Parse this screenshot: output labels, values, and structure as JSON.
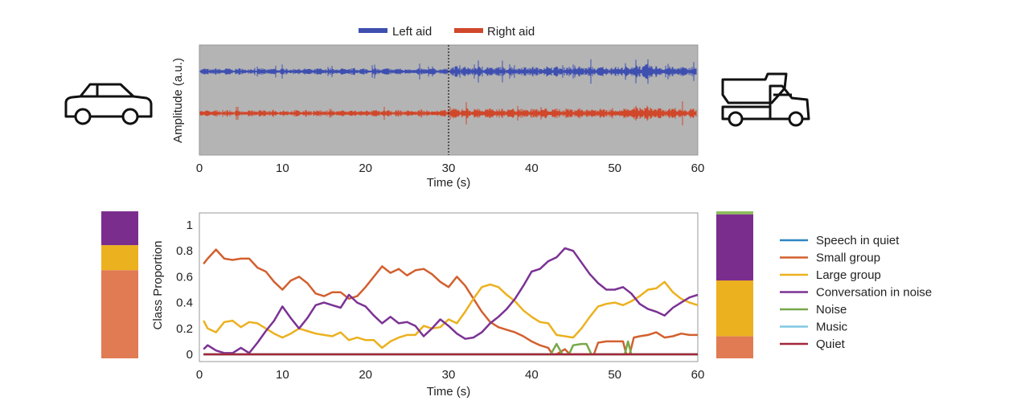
{
  "chart_data": [
    {
      "type": "line",
      "xlabel": "Time (s)",
      "ylabel": "Amplitude (a.u.)",
      "xlim": [
        0,
        60
      ],
      "xticks": [
        "0",
        "10",
        "20",
        "30",
        "40",
        "50",
        "60"
      ],
      "background": "#b4b4b4",
      "grid": false,
      "legend_position": "top",
      "marker_line_x": 30,
      "series": [
        {
          "name": "Left aid",
          "color": "#3e4fb0"
        },
        {
          "name": "Right aid",
          "color": "#d0472a"
        }
      ],
      "left_icon": "car-icon",
      "right_icon": "dump-truck-icon"
    },
    {
      "type": "line",
      "xlabel": "Time (s)",
      "ylabel": "Class Proportion",
      "xlim": [
        0,
        60
      ],
      "ylim": [
        0,
        1
      ],
      "xticks": [
        "0",
        "10",
        "20",
        "30",
        "40",
        "50",
        "60"
      ],
      "yticks": [
        "0",
        "0.2",
        "0.4",
        "0.6",
        "0.8",
        "1"
      ],
      "grid": false,
      "legend_position": "right",
      "series": [
        {
          "name": "Speech in quiet",
          "color": "#2e86c1",
          "x": [
            0.5,
            60
          ],
          "y": [
            0,
            0
          ]
        },
        {
          "name": "Small group",
          "color": "#d2602f",
          "x": [
            0.5,
            1,
            2,
            3,
            4,
            5,
            6,
            7,
            8,
            9,
            10,
            11,
            12,
            13,
            14,
            15,
            16,
            17,
            18,
            19,
            20,
            21,
            22,
            23,
            24,
            25,
            26,
            27,
            28,
            29,
            30,
            31,
            32,
            33,
            34,
            35,
            36,
            37,
            38,
            39,
            40,
            41,
            42,
            42.5,
            43,
            44,
            44.6,
            45,
            46,
            47,
            47.5,
            48,
            49,
            50,
            51,
            51.4,
            51.8,
            52.3,
            53,
            54,
            55,
            56,
            57,
            58,
            59,
            60
          ],
          "y": [
            0.7,
            0.74,
            0.81,
            0.74,
            0.73,
            0.74,
            0.74,
            0.67,
            0.64,
            0.56,
            0.5,
            0.57,
            0.6,
            0.55,
            0.47,
            0.45,
            0.48,
            0.48,
            0.43,
            0.45,
            0.52,
            0.6,
            0.68,
            0.63,
            0.66,
            0.61,
            0.65,
            0.66,
            0.62,
            0.56,
            0.52,
            0.6,
            0.53,
            0.43,
            0.33,
            0.25,
            0.21,
            0.19,
            0.17,
            0.14,
            0.1,
            0.07,
            0.05,
            0.0,
            0.0,
            0.04,
            0.0,
            0.0,
            0.0,
            0.0,
            0.0,
            0.09,
            0.1,
            0.1,
            0.1,
            0.0,
            0.0,
            0.13,
            0.14,
            0.15,
            0.17,
            0.13,
            0.14,
            0.16,
            0.15,
            0.15
          ]
        },
        {
          "name": "Large group",
          "color": "#ecb11f",
          "x": [
            0.5,
            1,
            2,
            3,
            4,
            5,
            6,
            7,
            8,
            9,
            10,
            11,
            12,
            13,
            14,
            15,
            16,
            17,
            18,
            19,
            20,
            21,
            22,
            23,
            24,
            25,
            26,
            27,
            28,
            29,
            30,
            31,
            32,
            33,
            34,
            35,
            36,
            37,
            38,
            39,
            40,
            41,
            42,
            43,
            44,
            45,
            46,
            47,
            48,
            49,
            50,
            51,
            52,
            53,
            54,
            55,
            56,
            57,
            58,
            59,
            60
          ],
          "y": [
            0.26,
            0.2,
            0.17,
            0.25,
            0.26,
            0.21,
            0.25,
            0.24,
            0.2,
            0.16,
            0.13,
            0.16,
            0.2,
            0.18,
            0.16,
            0.15,
            0.14,
            0.17,
            0.11,
            0.13,
            0.11,
            0.11,
            0.05,
            0.1,
            0.13,
            0.15,
            0.15,
            0.22,
            0.2,
            0.21,
            0.27,
            0.24,
            0.33,
            0.43,
            0.52,
            0.54,
            0.52,
            0.46,
            0.41,
            0.34,
            0.29,
            0.25,
            0.24,
            0.15,
            0.14,
            0.13,
            0.2,
            0.29,
            0.37,
            0.39,
            0.4,
            0.38,
            0.41,
            0.45,
            0.5,
            0.51,
            0.56,
            0.48,
            0.43,
            0.4,
            0.38
          ]
        },
        {
          "name": "Conversation in noise",
          "color": "#7b3294",
          "x": [
            0.5,
            1,
            2,
            3,
            4,
            5,
            6,
            7,
            8,
            9,
            10,
            11,
            12,
            13,
            14,
            15,
            16,
            17,
            18,
            19,
            20,
            21,
            22,
            23,
            24,
            25,
            26,
            27,
            28,
            29,
            30,
            31,
            32,
            33,
            34,
            35,
            36,
            37,
            38,
            39,
            40,
            41,
            42,
            43,
            44,
            45,
            46,
            47,
            48,
            49,
            50,
            51,
            52,
            53,
            54,
            55,
            56,
            57,
            58,
            59,
            60
          ],
          "y": [
            0.04,
            0.07,
            0.03,
            0.01,
            0.01,
            0.05,
            0.01,
            0.09,
            0.18,
            0.26,
            0.37,
            0.28,
            0.2,
            0.28,
            0.38,
            0.4,
            0.38,
            0.36,
            0.46,
            0.4,
            0.37,
            0.3,
            0.24,
            0.29,
            0.24,
            0.25,
            0.22,
            0.14,
            0.2,
            0.27,
            0.22,
            0.16,
            0.12,
            0.13,
            0.17,
            0.24,
            0.29,
            0.35,
            0.43,
            0.53,
            0.64,
            0.66,
            0.72,
            0.75,
            0.82,
            0.8,
            0.71,
            0.62,
            0.55,
            0.5,
            0.5,
            0.52,
            0.47,
            0.39,
            0.35,
            0.33,
            0.3,
            0.36,
            0.4,
            0.44,
            0.46
          ]
        },
        {
          "name": "Noise",
          "color": "#77a84a",
          "x": [
            0.5,
            42.3,
            43,
            43.7,
            44.5,
            45,
            46,
            46.6,
            47.2,
            51.2,
            51.6,
            52,
            60
          ],
          "y": [
            0,
            0,
            0.08,
            0,
            0,
            0.07,
            0.08,
            0.08,
            0,
            0,
            0.1,
            0,
            0
          ]
        },
        {
          "name": "Music",
          "color": "#7ec8e3",
          "x": [
            0.5,
            60
          ],
          "y": [
            0,
            0
          ]
        },
        {
          "name": "Quiet",
          "color": "#a3263a",
          "x": [
            0.5,
            60
          ],
          "y": [
            0,
            0
          ]
        }
      ],
      "summary_bars": {
        "left": [
          {
            "class": "Small group",
            "value": 0.6,
            "color": "#e07b54"
          },
          {
            "class": "Large group",
            "value": 0.17,
            "color": "#ecb11f"
          },
          {
            "class": "Conversation in noise",
            "value": 0.23,
            "color": "#7b2d8e"
          }
        ],
        "right": [
          {
            "class": "Small group",
            "value": 0.15,
            "color": "#e07b54"
          },
          {
            "class": "Large group",
            "value": 0.38,
            "color": "#ecb11f"
          },
          {
            "class": "Conversation in noise",
            "value": 0.45,
            "color": "#7b2d8e"
          },
          {
            "class": "Noise",
            "value": 0.02,
            "color": "#8cbf5a"
          }
        ]
      }
    }
  ]
}
